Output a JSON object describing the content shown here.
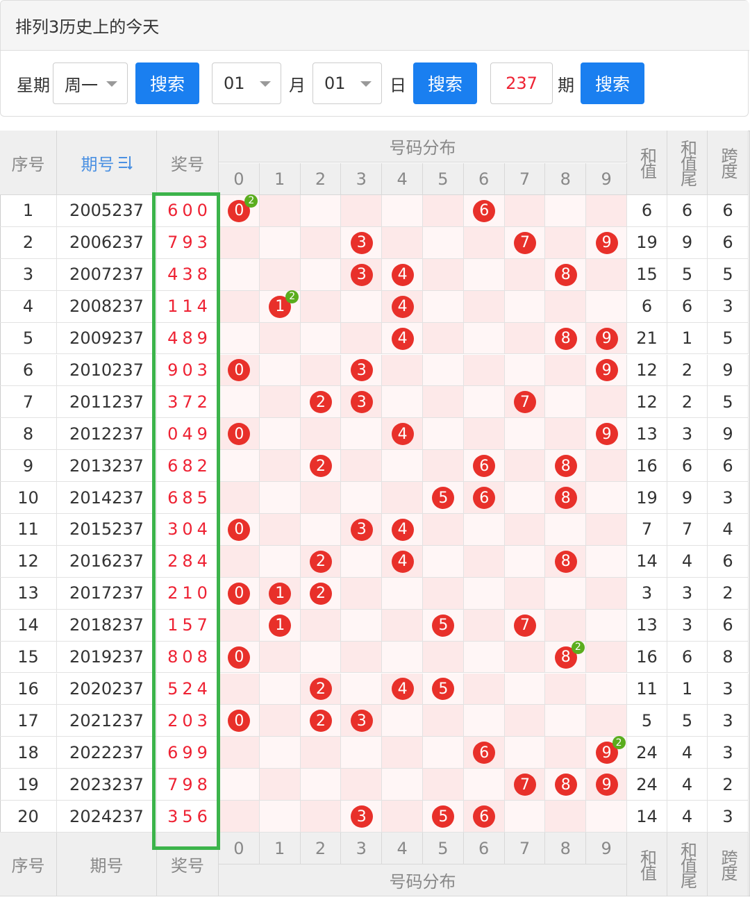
{
  "header": {
    "title": "排列3历史上的今天"
  },
  "filters": {
    "weekday_label": "星期",
    "weekday": "周一",
    "search_weekday": "搜索",
    "month": "01",
    "month_label": "月",
    "day": "01",
    "day_label": "日",
    "search_date": "搜索",
    "period": "237",
    "period_label": "期",
    "search_period": "搜索"
  },
  "table": {
    "columns": {
      "index": "序号",
      "issue": "期号",
      "number": "奖号",
      "distribution": "号码分布",
      "digits": [
        0,
        1,
        2,
        3,
        4,
        5,
        6,
        7,
        8,
        9
      ],
      "sum": "和值",
      "sum_tail": "和值尾",
      "span": "跨度"
    },
    "rows": [
      {
        "no": 1,
        "issue": "2005237",
        "number": "600",
        "balls": [
          {
            "digit": 0,
            "repeat": 2
          },
          {
            "digit": 6
          }
        ],
        "sum": 6,
        "sum_tail": 6,
        "span": 6
      },
      {
        "no": 2,
        "issue": "2006237",
        "number": "793",
        "balls": [
          {
            "digit": 3
          },
          {
            "digit": 7
          },
          {
            "digit": 9
          }
        ],
        "sum": 19,
        "sum_tail": 9,
        "span": 6
      },
      {
        "no": 3,
        "issue": "2007237",
        "number": "438",
        "balls": [
          {
            "digit": 3
          },
          {
            "digit": 4
          },
          {
            "digit": 8
          }
        ],
        "sum": 15,
        "sum_tail": 5,
        "span": 5
      },
      {
        "no": 4,
        "issue": "2008237",
        "number": "114",
        "balls": [
          {
            "digit": 1,
            "repeat": 2
          },
          {
            "digit": 4
          }
        ],
        "sum": 6,
        "sum_tail": 6,
        "span": 3
      },
      {
        "no": 5,
        "issue": "2009237",
        "number": "489",
        "balls": [
          {
            "digit": 4
          },
          {
            "digit": 8
          },
          {
            "digit": 9
          }
        ],
        "sum": 21,
        "sum_tail": 1,
        "span": 5
      },
      {
        "no": 6,
        "issue": "2010237",
        "number": "903",
        "balls": [
          {
            "digit": 0
          },
          {
            "digit": 3
          },
          {
            "digit": 9
          }
        ],
        "sum": 12,
        "sum_tail": 2,
        "span": 9
      },
      {
        "no": 7,
        "issue": "2011237",
        "number": "372",
        "balls": [
          {
            "digit": 2
          },
          {
            "digit": 3
          },
          {
            "digit": 7
          }
        ],
        "sum": 12,
        "sum_tail": 2,
        "span": 5
      },
      {
        "no": 8,
        "issue": "2012237",
        "number": "049",
        "balls": [
          {
            "digit": 0
          },
          {
            "digit": 4
          },
          {
            "digit": 9
          }
        ],
        "sum": 13,
        "sum_tail": 3,
        "span": 9
      },
      {
        "no": 9,
        "issue": "2013237",
        "number": "682",
        "balls": [
          {
            "digit": 2
          },
          {
            "digit": 6
          },
          {
            "digit": 8
          }
        ],
        "sum": 16,
        "sum_tail": 6,
        "span": 6
      },
      {
        "no": 10,
        "issue": "2014237",
        "number": "685",
        "balls": [
          {
            "digit": 5
          },
          {
            "digit": 6
          },
          {
            "digit": 8
          }
        ],
        "sum": 19,
        "sum_tail": 9,
        "span": 3
      },
      {
        "no": 11,
        "issue": "2015237",
        "number": "304",
        "balls": [
          {
            "digit": 0
          },
          {
            "digit": 3
          },
          {
            "digit": 4
          }
        ],
        "sum": 7,
        "sum_tail": 7,
        "span": 4
      },
      {
        "no": 12,
        "issue": "2016237",
        "number": "284",
        "balls": [
          {
            "digit": 2
          },
          {
            "digit": 4
          },
          {
            "digit": 8
          }
        ],
        "sum": 14,
        "sum_tail": 4,
        "span": 6
      },
      {
        "no": 13,
        "issue": "2017237",
        "number": "210",
        "balls": [
          {
            "digit": 0
          },
          {
            "digit": 1
          },
          {
            "digit": 2
          }
        ],
        "sum": 3,
        "sum_tail": 3,
        "span": 2
      },
      {
        "no": 14,
        "issue": "2018237",
        "number": "157",
        "balls": [
          {
            "digit": 1
          },
          {
            "digit": 5
          },
          {
            "digit": 7
          }
        ],
        "sum": 13,
        "sum_tail": 3,
        "span": 6
      },
      {
        "no": 15,
        "issue": "2019237",
        "number": "808",
        "balls": [
          {
            "digit": 0
          },
          {
            "digit": 8,
            "repeat": 2
          }
        ],
        "sum": 16,
        "sum_tail": 6,
        "span": 8
      },
      {
        "no": 16,
        "issue": "2020237",
        "number": "524",
        "balls": [
          {
            "digit": 2
          },
          {
            "digit": 4
          },
          {
            "digit": 5
          }
        ],
        "sum": 11,
        "sum_tail": 1,
        "span": 3
      },
      {
        "no": 17,
        "issue": "2021237",
        "number": "203",
        "balls": [
          {
            "digit": 0
          },
          {
            "digit": 2
          },
          {
            "digit": 3
          }
        ],
        "sum": 5,
        "sum_tail": 5,
        "span": 3
      },
      {
        "no": 18,
        "issue": "2022237",
        "number": "699",
        "balls": [
          {
            "digit": 6
          },
          {
            "digit": 9,
            "repeat": 2
          }
        ],
        "sum": 24,
        "sum_tail": 4,
        "span": 3
      },
      {
        "no": 19,
        "issue": "2023237",
        "number": "798",
        "balls": [
          {
            "digit": 7
          },
          {
            "digit": 8
          },
          {
            "digit": 9
          }
        ],
        "sum": 24,
        "sum_tail": 4,
        "span": 2
      },
      {
        "no": 20,
        "issue": "2024237",
        "number": "356",
        "balls": [
          {
            "digit": 3
          },
          {
            "digit": 5
          },
          {
            "digit": 6
          }
        ],
        "sum": 14,
        "sum_tail": 4,
        "span": 3
      }
    ]
  }
}
